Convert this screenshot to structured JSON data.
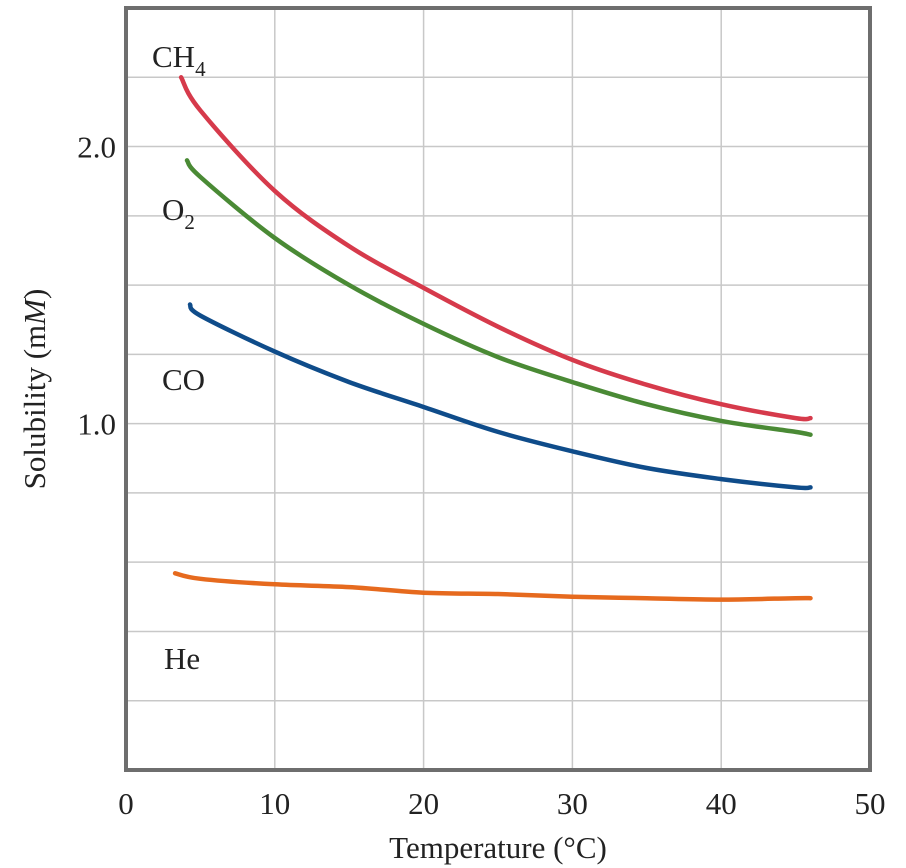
{
  "chart_data": {
    "type": "line",
    "title": "",
    "xlabel": "Temperature (°C)",
    "ylabel_main": "Solubility (m",
    "ylabel_italic": "M",
    "ylabel_close": ")",
    "xlim": [
      0,
      50
    ],
    "ylim": [
      -0.25,
      2.5
    ],
    "x_ticks": [
      0,
      10,
      20,
      30,
      40,
      50
    ],
    "x_tick_labels": [
      "0",
      "10",
      "20",
      "30",
      "40",
      "50"
    ],
    "y_ticks": [
      1.0,
      2.0
    ],
    "y_tick_labels": [
      "1.0",
      "2.0"
    ],
    "grid": true,
    "legend": "none (series labeled directly on plot)",
    "series": [
      {
        "name": "CH4",
        "label_main": "CH",
        "label_sub": "4",
        "color": "#d63a4b",
        "points": [
          [
            3.7,
            2.25
          ],
          [
            5,
            2.13
          ],
          [
            10,
            1.84
          ],
          [
            15,
            1.64
          ],
          [
            20,
            1.49
          ],
          [
            25,
            1.35
          ],
          [
            30,
            1.23
          ],
          [
            35,
            1.14
          ],
          [
            40,
            1.07
          ],
          [
            45,
            1.02
          ],
          [
            46,
            1.02
          ]
        ]
      },
      {
        "name": "O2",
        "label_main": "O",
        "label_sub": "2",
        "color": "#4a8a35",
        "points": [
          [
            4.1,
            1.95
          ],
          [
            5,
            1.89
          ],
          [
            10,
            1.67
          ],
          [
            15,
            1.5
          ],
          [
            20,
            1.36
          ],
          [
            25,
            1.24
          ],
          [
            30,
            1.15
          ],
          [
            35,
            1.07
          ],
          [
            40,
            1.01
          ],
          [
            45,
            0.97
          ],
          [
            46,
            0.96
          ]
        ]
      },
      {
        "name": "CO",
        "label_main": "CO",
        "label_sub": "",
        "color": "#0f4c8a",
        "points": [
          [
            4.3,
            1.43
          ],
          [
            5,
            1.39
          ],
          [
            10,
            1.26
          ],
          [
            15,
            1.15
          ],
          [
            20,
            1.06
          ],
          [
            25,
            0.97
          ],
          [
            30,
            0.9
          ],
          [
            35,
            0.84
          ],
          [
            40,
            0.8
          ],
          [
            45,
            0.77
          ],
          [
            46,
            0.77
          ]
        ]
      },
      {
        "name": "He",
        "label_main": "He",
        "label_sub": "",
        "color": "#e66a1e",
        "points": [
          [
            3.3,
            0.46
          ],
          [
            5,
            0.44
          ],
          [
            10,
            0.42
          ],
          [
            15,
            0.41
          ],
          [
            20,
            0.39
          ],
          [
            25,
            0.385
          ],
          [
            30,
            0.375
          ],
          [
            35,
            0.37
          ],
          [
            40,
            0.365
          ],
          [
            45,
            0.37
          ],
          [
            46,
            0.37
          ]
        ]
      }
    ]
  },
  "colors": {
    "frame": "#6e6e6e",
    "grid": "#c8c8c8",
    "text": "#222222"
  }
}
